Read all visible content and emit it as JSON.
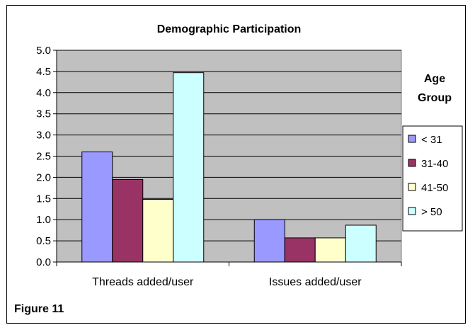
{
  "chart_data": {
    "type": "bar",
    "title": "Demographic Participation",
    "categories": [
      "Threads added/user",
      "Issues added/user"
    ],
    "series": [
      {
        "name": "< 31",
        "values": [
          2.6,
          1.0
        ],
        "color": "#9999ff"
      },
      {
        "name": "31-40",
        "values": [
          1.95,
          0.57
        ],
        "color": "#993366"
      },
      {
        "name": "41-50",
        "values": [
          1.48,
          0.57
        ],
        "color": "#ffffcc"
      },
      {
        "name": "> 50",
        "values": [
          4.47,
          0.87
        ],
        "color": "#ccffff"
      }
    ],
    "yticks": [
      "0.0",
      "0.5",
      "1.0",
      "1.5",
      "2.0",
      "2.5",
      "3.0",
      "3.5",
      "4.0",
      "4.5",
      "5.0"
    ],
    "ylim": [
      0,
      5
    ],
    "grid": true,
    "plot_background": "#c0c0c0",
    "legend": {
      "title": [
        "Age",
        "Group"
      ],
      "position": "right"
    }
  },
  "figure_label": "Figure 11"
}
